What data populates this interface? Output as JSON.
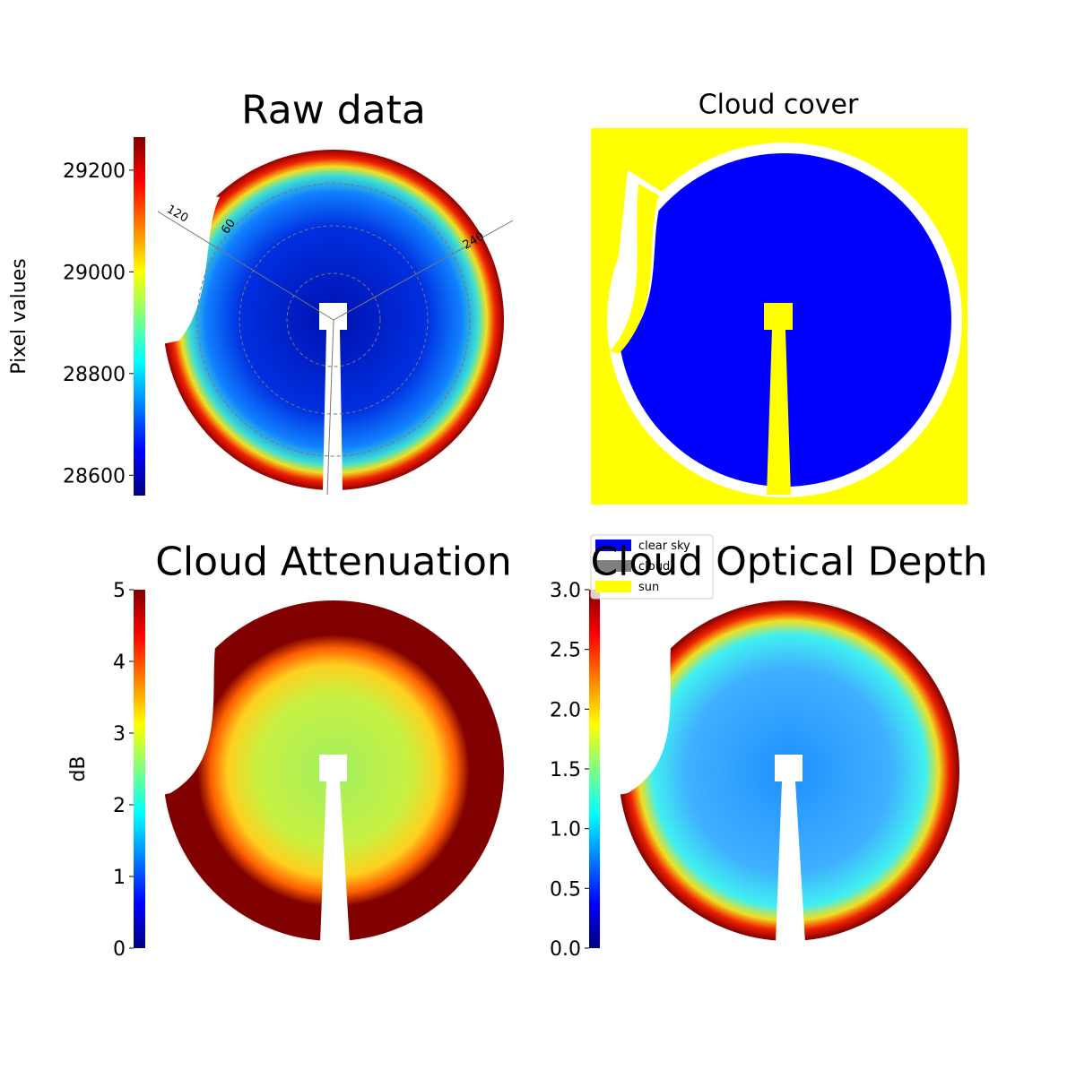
{
  "chart_data": [
    {
      "type": "image",
      "title": "Raw data",
      "annotations": [
        "120",
        "60",
        "240"
      ],
      "colorbar": {
        "label": "Pixel values",
        "colormap": "jet",
        "clim": [
          28560,
          29265
        ],
        "cticks": [
          28600,
          28800,
          29000,
          29200
        ]
      }
    },
    {
      "type": "image",
      "title": "Cloud cover",
      "legend": [
        {
          "name": "clear sky",
          "color": "#0000ff"
        },
        {
          "name": "cloud",
          "color": "#808080"
        },
        {
          "name": "sun",
          "color": "#ffff00"
        }
      ]
    },
    {
      "type": "image",
      "title": "Cloud Attenuation",
      "colorbar": {
        "label": "dB",
        "colormap": "jet",
        "clim": [
          0,
          5
        ],
        "cticks": [
          0,
          1,
          2,
          3,
          4,
          5
        ]
      }
    },
    {
      "type": "image",
      "title": "Cloud Optical Depth",
      "colorbar": {
        "colormap": "jet",
        "clim": [
          0,
          3
        ],
        "cticks": [
          {
            "value": 0,
            "label": "0.0"
          },
          0.5,
          {
            "value": 1,
            "label": "1.0"
          },
          1.5,
          {
            "value": 2,
            "label": "2.0"
          },
          2.5,
          {
            "value": 3,
            "label": "3.0"
          }
        ]
      }
    }
  ]
}
